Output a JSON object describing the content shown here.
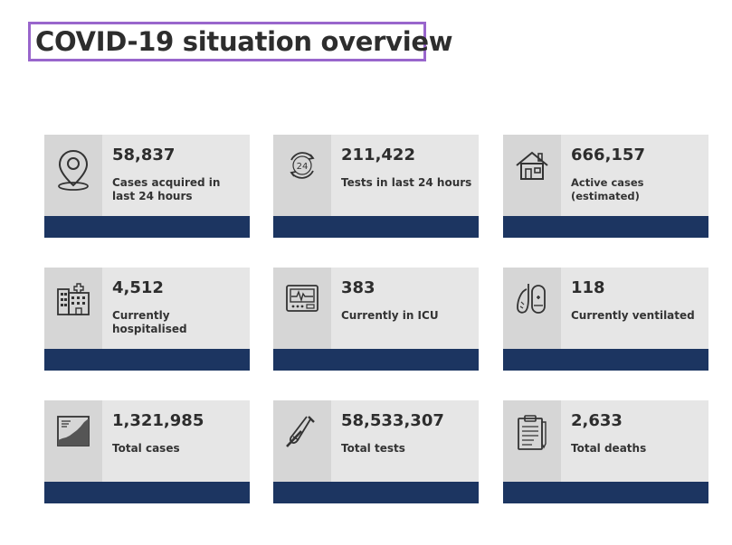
{
  "page": {
    "title": "COVID-19 situation overview"
  },
  "colors": {
    "title_border": "#9966cc",
    "card_bg": "#e6e6e6",
    "icon_bg": "#d6d6d6",
    "card_bar": "#1c3561"
  },
  "stats": [
    {
      "value": "58,837",
      "label": "Cases acquired in last 24 hours",
      "icon": "location-pin-icon"
    },
    {
      "value": "211,422",
      "label": "Tests in last 24 hours",
      "icon": "24-hours-icon"
    },
    {
      "value": "666,157",
      "label": "Active cases (estimated)",
      "icon": "house-icon"
    },
    {
      "value": "4,512",
      "label": "Currently hospitalised",
      "icon": "hospital-icon"
    },
    {
      "value": "383",
      "label": "Currently in ICU",
      "icon": "heart-monitor-icon"
    },
    {
      "value": "118",
      "label": "Currently ventilated",
      "icon": "lungs-icon"
    },
    {
      "value": "1,321,985",
      "label": "Total cases",
      "icon": "rising-chart-icon"
    },
    {
      "value": "58,533,307",
      "label": "Total tests",
      "icon": "test-tube-icon"
    },
    {
      "value": "2,633",
      "label": "Total deaths",
      "icon": "clipboard-icon"
    }
  ]
}
